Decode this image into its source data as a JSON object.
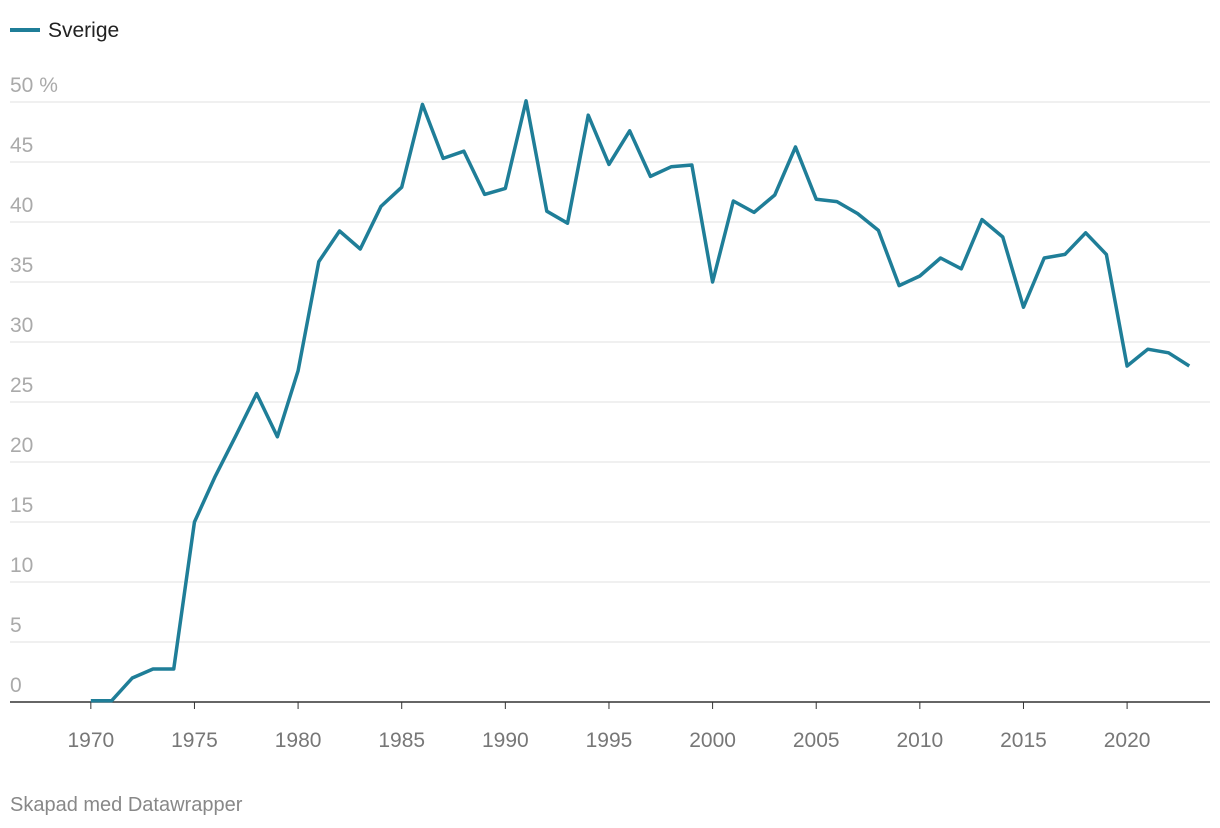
{
  "chart_data": {
    "type": "line",
    "x": [
      1970,
      1971,
      1972,
      1973,
      1974,
      1975,
      1976,
      1977,
      1978,
      1979,
      1980,
      1981,
      1982,
      1983,
      1984,
      1985,
      1986,
      1987,
      1988,
      1989,
      1990,
      1991,
      1992,
      1993,
      1994,
      1995,
      1996,
      1997,
      1998,
      1999,
      2000,
      2001,
      2002,
      2003,
      2004,
      2005,
      2006,
      2007,
      2008,
      2009,
      2010,
      2011,
      2012,
      2013,
      2014,
      2015,
      2016,
      2017,
      2018,
      2019,
      2020,
      2021,
      2022,
      2023
    ],
    "series": [
      {
        "name": "Sverige",
        "color": "#1f7e98",
        "values": [
          0.1,
          0.1,
          2.0,
          2.75,
          2.75,
          15,
          18.8,
          22.2,
          25.7,
          22.1,
          27.6,
          36.7,
          39.25,
          37.75,
          41.3,
          42.9,
          49.8,
          45.3,
          45.9,
          42.3,
          42.8,
          50.1,
          40.9,
          39.9,
          48.9,
          44.8,
          47.6,
          43.8,
          44.6,
          44.75,
          35,
          41.75,
          40.8,
          42.25,
          46.25,
          41.9,
          41.7,
          40.7,
          39.3,
          34.7,
          35.5,
          37,
          36.1,
          40.2,
          38.75,
          32.9,
          37,
          37.3,
          39.1,
          37.3,
          28,
          29.4,
          29.1,
          28
        ]
      }
    ],
    "xlim": [
      1966.1,
      2024
    ],
    "xticks": [
      1970,
      1975,
      1980,
      1985,
      1990,
      1995,
      2000,
      2005,
      2010,
      2015,
      2020
    ],
    "ylim": [
      0,
      50
    ],
    "yticks": [
      0,
      5,
      10,
      15,
      20,
      25,
      30,
      35,
      40,
      45,
      {
        "value": 50,
        "label": "50 %"
      }
    ],
    "grid": true,
    "footer": "Skapad med Datawrapper"
  }
}
